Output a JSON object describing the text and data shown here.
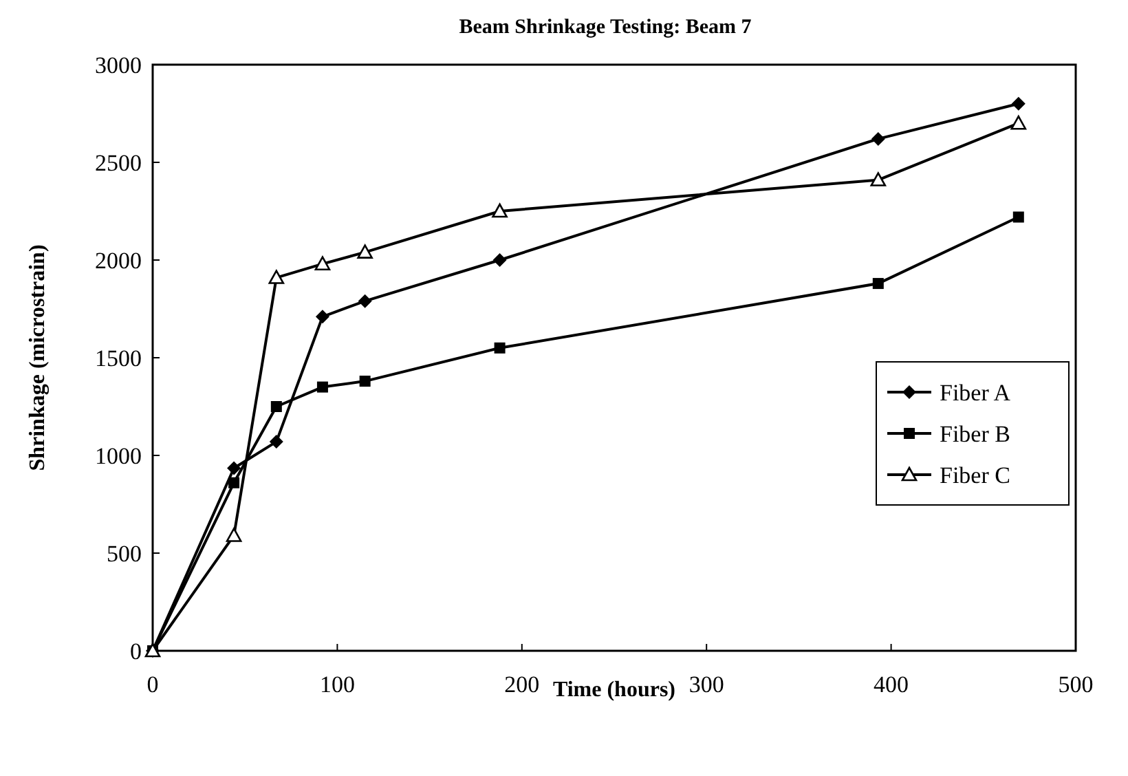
{
  "chart_data": {
    "type": "line",
    "title": "Beam Shrinkage Testing: Beam 7",
    "xlabel": "Time (hours)",
    "ylabel": "Shrinkage (microstrain)",
    "x": [
      0,
      44,
      67,
      92,
      115,
      188,
      393,
      469
    ],
    "series": [
      {
        "name": "Fiber A",
        "color": "#000000",
        "marker": "diamond",
        "values": [
          0,
          935,
          1070,
          1710,
          1790,
          2000,
          2620,
          2800
        ]
      },
      {
        "name": "Fiber B",
        "color": "#000000",
        "marker": "square",
        "values": [
          0,
          860,
          1250,
          1350,
          1380,
          1550,
          1880,
          2220
        ]
      },
      {
        "name": "Fiber C",
        "color": "#000000",
        "marker": "triangle",
        "values": [
          0,
          590,
          1910,
          1980,
          2040,
          2250,
          2410,
          2700
        ]
      }
    ],
    "xlim": [
      0,
      500
    ],
    "xticks": [
      0,
      100,
      200,
      300,
      400,
      500
    ],
    "ylim": [
      0,
      3000
    ],
    "yticks": [
      0,
      500,
      1000,
      1500,
      2000,
      2500,
      3000
    ],
    "grid": false,
    "legend": "right",
    "line_style": "solid"
  }
}
